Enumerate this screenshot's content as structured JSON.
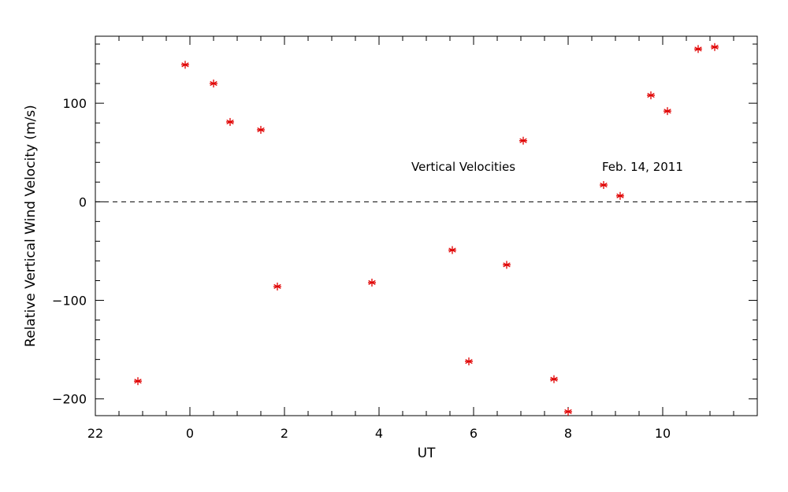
{
  "chart_data": {
    "type": "scatter",
    "title": "",
    "xlabel": "UT",
    "ylabel": "Relative Vertical Wind Velocity (m/s)",
    "xlim": [
      -2.0,
      12.0
    ],
    "ylim": [
      -217,
      168
    ],
    "x_ticks": [
      22,
      0,
      2,
      4,
      6,
      8,
      10
    ],
    "y_ticks": [
      -200,
      -100,
      0,
      100
    ],
    "grid": false,
    "reference_line": {
      "y": 0,
      "style": "dashed"
    },
    "marker": "asterisk",
    "marker_color": "#e00000",
    "annotations": [
      "Vertical Velocities",
      "Feb. 14, 2011"
    ],
    "series": [
      {
        "x": [
          -1.1,
          -0.1,
          0.5,
          0.85,
          1.5,
          1.85,
          3.85,
          5.55,
          5.9,
          6.7,
          7.05,
          7.7,
          8.0,
          8.75,
          9.1,
          9.75,
          10.1,
          10.75,
          11.1
        ],
        "y": [
          -182,
          139,
          120,
          81,
          73,
          -86,
          -82,
          -49,
          -162,
          -64,
          62,
          -180,
          -213,
          17,
          6,
          108,
          92,
          155,
          157
        ]
      }
    ]
  }
}
